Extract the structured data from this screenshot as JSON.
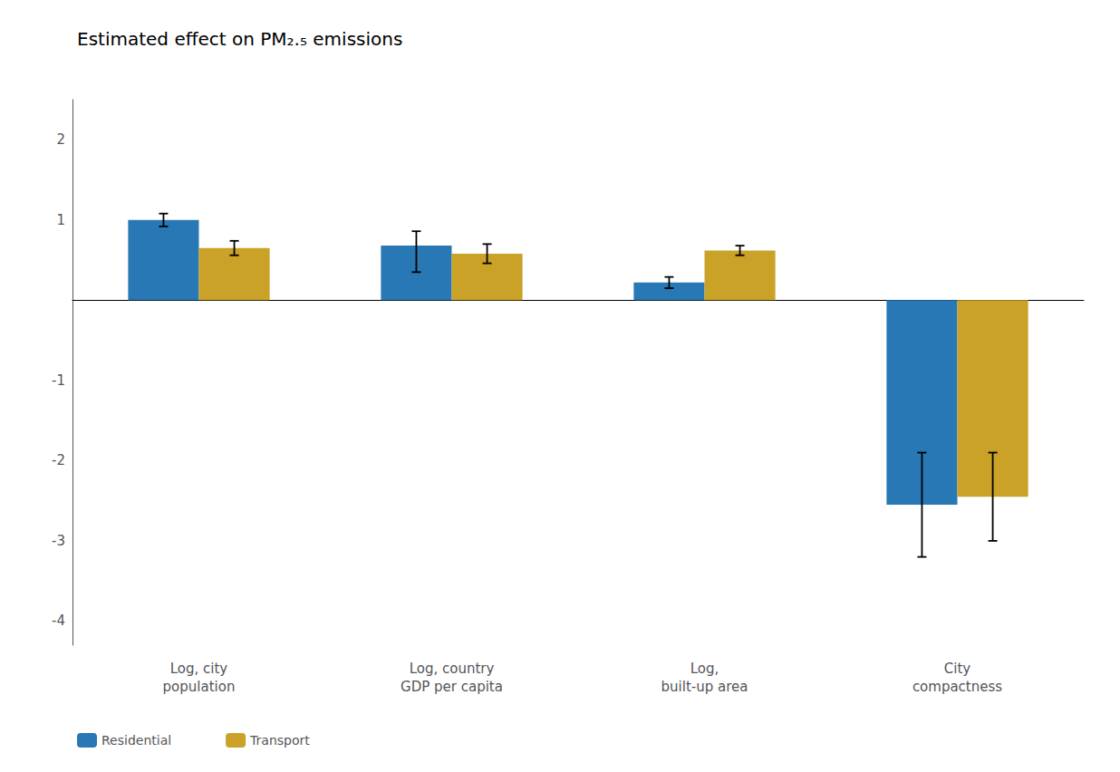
{
  "chart_data": {
    "type": "bar",
    "title": "Estimated effect on PM₂.₅ emissions",
    "categories": [
      "Log, city\npopulation",
      "Log, country\nGDP per capita",
      "Log,\nbuilt-up area",
      "City\ncompactness"
    ],
    "series": [
      {
        "name": "Residential",
        "color": "#2878B5",
        "values": [
          1.0,
          0.68,
          0.22,
          -2.55
        ],
        "errors_low": [
          0.08,
          0.33,
          0.07,
          0.65
        ],
        "errors_high": [
          0.08,
          0.18,
          0.07,
          0.65
        ]
      },
      {
        "name": "Transport",
        "color": "#C9A227",
        "values": [
          0.65,
          0.58,
          0.62,
          -2.45
        ],
        "errors_low": [
          0.09,
          0.12,
          0.06,
          0.55
        ],
        "errors_high": [
          0.09,
          0.12,
          0.06,
          0.55
        ]
      }
    ],
    "ylim": [
      -4.3,
      2.5
    ],
    "yticks": [
      -4,
      -3,
      -2,
      -1,
      {
        "value": 0,
        "label": ""
      },
      1,
      2
    ],
    "grid": false,
    "legend": "lower left"
  }
}
